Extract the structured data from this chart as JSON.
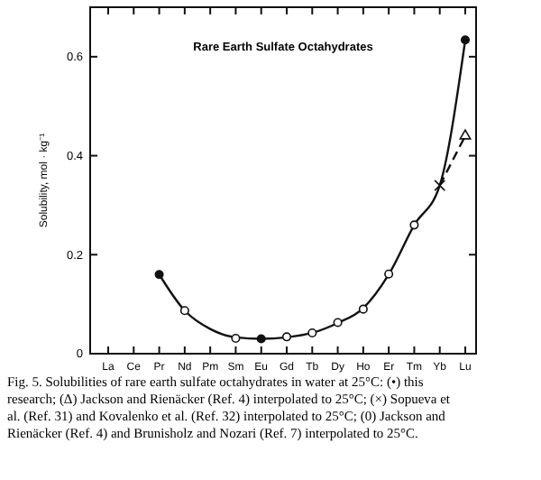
{
  "chart_data": {
    "type": "scatter",
    "title": "Rare Earth Sulfate Octahydrates",
    "ylabel": "Solubility, mol · kg⁻¹",
    "categories": [
      "La",
      "Ce",
      "Pr",
      "Nd",
      "Pm",
      "Sm",
      "Eu",
      "Gd",
      "Tb",
      "Dy",
      "Ho",
      "Er",
      "Tm",
      "Yb",
      "Lu"
    ],
    "ylim": [
      0,
      0.7
    ],
    "yticks": [
      0,
      0.2,
      0.4,
      0.6
    ],
    "grid": false,
    "series": [
      {
        "type": "line",
        "color": "#111111",
        "marker": "none",
        "line_style": "solid",
        "values": [
          null,
          null,
          0.16,
          0.087,
          0.05,
          0.033,
          0.03,
          0.033,
          0.042,
          0.062,
          0.092,
          0.16,
          0.26,
          0.34,
          0.634
        ]
      },
      {
        "type": "line",
        "color": "#111111",
        "marker": "none",
        "line_style": "dashed",
        "values": [
          null,
          null,
          null,
          null,
          null,
          null,
          null,
          null,
          null,
          null,
          null,
          null,
          null,
          0.34,
          0.44
        ]
      },
      {
        "color": "#111111",
        "marker": "circle",
        "values": [
          null,
          null,
          0.16,
          null,
          null,
          null,
          0.03,
          null,
          null,
          null,
          null,
          null,
          null,
          null,
          0.634
        ]
      },
      {
        "color": "#ffffff",
        "marker": "circle",
        "values": [
          null,
          null,
          null,
          0.087,
          null,
          0.031,
          null,
          0.034,
          0.042,
          0.063,
          0.09,
          0.161,
          0.26,
          null,
          null
        ]
      },
      {
        "color": "#111111",
        "marker": "cross",
        "values": [
          null,
          null,
          null,
          null,
          null,
          null,
          null,
          null,
          null,
          null,
          null,
          null,
          null,
          0.34,
          null
        ]
      },
      {
        "color": "#ffffff",
        "marker": "triangle",
        "values": [
          null,
          null,
          null,
          null,
          null,
          null,
          null,
          null,
          null,
          null,
          null,
          null,
          null,
          null,
          0.44
        ]
      }
    ],
    "annotations": [
      "Fig. 5. Solubilities of rare earth sulfate octahydrates in water at 25°C: (•) this research; (Δ) Jackson and Rienäcker (Ref. 4) interpolated to 25°C; (×) Sopueva et al. (Ref. 31) and Kovalenko et al. (Ref. 32) interpolated to 25°C; (0) Jackson and Rienäcker (Ref. 4) and Brunisholz and Nozari (Ref. 7) interpolated to 25°C."
    ]
  }
}
